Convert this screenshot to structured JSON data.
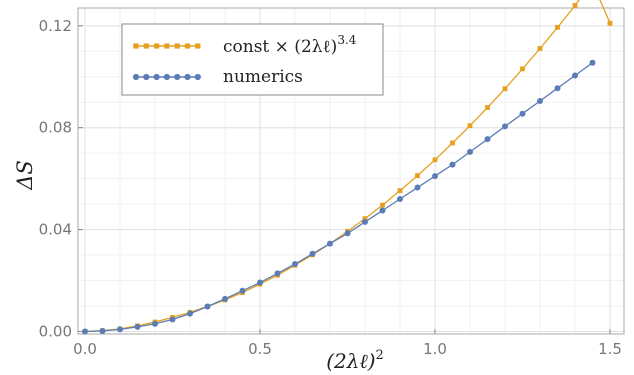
{
  "chart_data": {
    "type": "line",
    "xlabel_base": "(2λℓ)",
    "xlabel_exp": "2",
    "ylabel": "ΔS",
    "xlim": [
      -0.02,
      1.54
    ],
    "ylim": [
      -0.001,
      0.127
    ],
    "xticks": [
      0.0,
      0.5,
      1.0,
      1.5
    ],
    "xtick_labels": [
      "0.0",
      "0.5",
      "1.0",
      "1.5"
    ],
    "yticks": [
      0.0,
      0.04,
      0.08,
      0.12
    ],
    "ytick_labels": [
      "0.00",
      "0.04",
      "0.08",
      "0.12"
    ],
    "grid": true,
    "legend_position": "top-left",
    "legend": {
      "fit_label": "const × (2λℓ)",
      "fit_exp": "3.4",
      "numerics_label": "numerics"
    },
    "series": [
      {
        "key": "fit",
        "color": "#E69F1F",
        "marker": "square",
        "x": [
          0.0,
          0.05,
          0.1,
          0.15,
          0.2,
          0.25,
          0.3,
          0.35,
          0.4,
          0.45,
          0.5,
          0.55,
          0.6,
          0.65,
          0.7,
          0.75,
          0.8,
          0.85,
          0.9,
          0.95,
          1.0,
          1.05,
          1.1,
          1.15,
          1.2,
          1.25,
          1.3,
          1.35,
          1.4,
          1.45,
          1.5
        ],
        "values": [
          0.0,
          0.0003,
          0.001,
          0.0022,
          0.0037,
          0.0055,
          0.0075,
          0.0098,
          0.0124,
          0.0153,
          0.0186,
          0.0221,
          0.026,
          0.0301,
          0.0345,
          0.0393,
          0.0443,
          0.0496,
          0.0553,
          0.0612,
          0.0674,
          0.074,
          0.0808,
          0.0879,
          0.0953,
          0.1031,
          0.1111,
          0.1194,
          0.128,
          0.137,
          0.121
        ]
      },
      {
        "key": "numerics",
        "color": "#5B7DB5",
        "marker": "circle",
        "x": [
          0.0,
          0.05,
          0.1,
          0.15,
          0.2,
          0.25,
          0.3,
          0.35,
          0.4,
          0.45,
          0.5,
          0.55,
          0.6,
          0.65,
          0.7,
          0.75,
          0.8,
          0.85,
          0.9,
          0.95,
          1.0,
          1.05,
          1.1,
          1.15,
          1.2,
          1.25,
          1.3,
          1.35,
          1.4,
          1.45
        ],
        "values": [
          0.0,
          0.0002,
          0.0008,
          0.0018,
          0.003,
          0.0047,
          0.007,
          0.0098,
          0.0128,
          0.016,
          0.0192,
          0.0228,
          0.0265,
          0.0305,
          0.0345,
          0.0385,
          0.043,
          0.0475,
          0.052,
          0.0565,
          0.061,
          0.0655,
          0.0705,
          0.0755,
          0.0805,
          0.0855,
          0.0905,
          0.0955,
          0.1005,
          0.1055
        ]
      }
    ]
  }
}
